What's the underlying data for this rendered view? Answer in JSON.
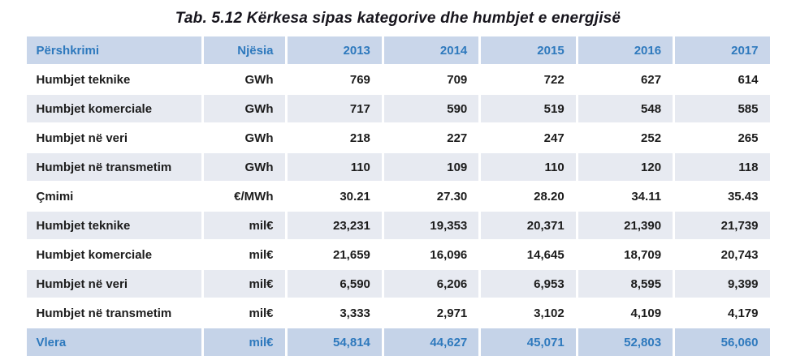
{
  "title": "Tab. 5.12 Kërkesa sipas kategorive dhe humbjet e energjisë",
  "table": {
    "columns": [
      "Përshkrimi",
      "Njësia",
      "2013",
      "2014",
      "2015",
      "2016",
      "2017"
    ],
    "rows": [
      {
        "label": "Humbjet teknike",
        "unit": "GWh",
        "values": [
          "769",
          "709",
          "722",
          "627",
          "614"
        ]
      },
      {
        "label": "Humbjet komerciale",
        "unit": "GWh",
        "values": [
          "717",
          "590",
          "519",
          "548",
          "585"
        ]
      },
      {
        "label": "Humbjet në veri",
        "unit": "GWh",
        "values": [
          "218",
          "227",
          "247",
          "252",
          "265"
        ]
      },
      {
        "label": "Humbjet në transmetim",
        "unit": "GWh",
        "values": [
          "110",
          "109",
          "110",
          "120",
          "118"
        ]
      },
      {
        "label": "Çmimi",
        "unit": "€/MWh",
        "values": [
          "30.21",
          "27.30",
          "28.20",
          "34.11",
          "35.43"
        ]
      },
      {
        "label": "Humbjet teknike",
        "unit": "mil€",
        "values": [
          "23,231",
          "19,353",
          "20,371",
          "21,390",
          "21,739"
        ]
      },
      {
        "label": "Humbjet komerciale",
        "unit": "mil€",
        "values": [
          "21,659",
          "16,096",
          "14,645",
          "18,709",
          "20,743"
        ]
      },
      {
        "label": "Humbjet në veri",
        "unit": "mil€",
        "values": [
          "6,590",
          "6,206",
          "6,953",
          "8,595",
          "9,399"
        ]
      },
      {
        "label": "Humbjet në transmetim",
        "unit": "mil€",
        "values": [
          "3,333",
          "2,971",
          "3,102",
          "4,109",
          "4,179"
        ]
      },
      {
        "label": "Vlera",
        "unit": "mil€",
        "values": [
          "54,814",
          "44,627",
          "45,071",
          "52,803",
          "56,060"
        ]
      }
    ]
  },
  "colors": {
    "accent": "#2e79bd",
    "header_bg": "#c9d6ea",
    "alt_row_bg": "#e7eaf1",
    "total_row_bg": "#c5d3e8",
    "text": "#1c1c1c",
    "title_color": "#16141c"
  }
}
